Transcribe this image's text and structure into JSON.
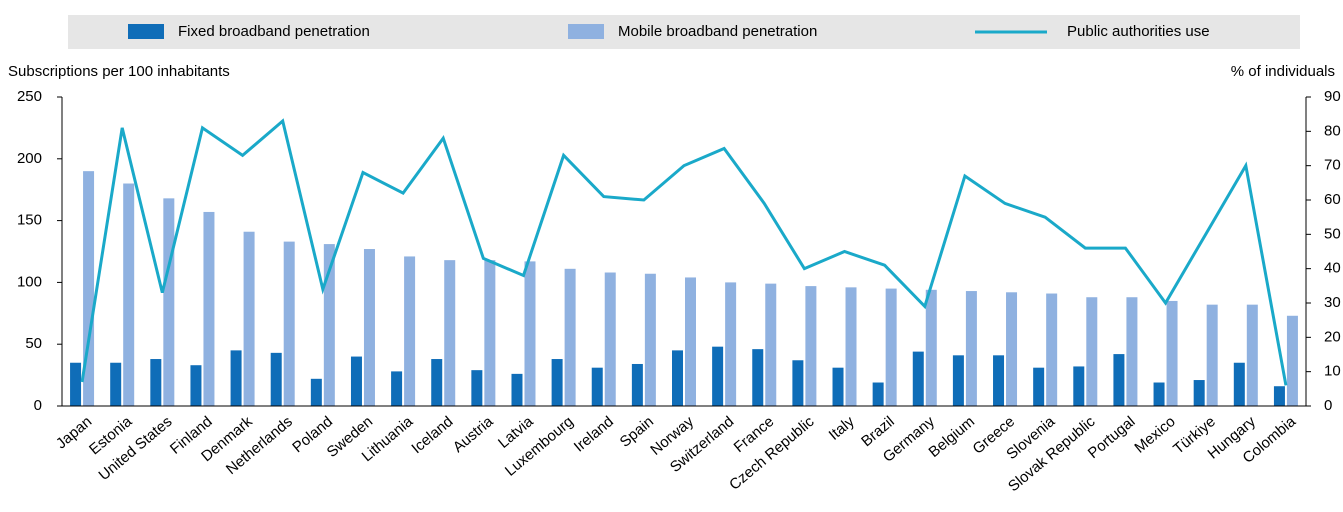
{
  "chart_data": {
    "type": "bar-line",
    "y_label": "Subscriptions per 100 inhabitants",
    "y2_label": "% of individuals",
    "categories": [
      "Japan",
      "Estonia",
      "United States",
      "Finland",
      "Denmark",
      "Netherlands",
      "Poland",
      "Sweden",
      "Lithuania",
      "Iceland",
      "Austria",
      "Latvia",
      "Luxembourg",
      "Ireland",
      "Spain",
      "Norway",
      "Switzerland",
      "France",
      "Czech Republic",
      "Italy",
      "Brazil",
      "Germany",
      "Belgium",
      "Greece",
      "Slovenia",
      "Slovak Republic",
      "Portugal",
      "Mexico",
      "Türkiye",
      "Hungary",
      "Colombia"
    ],
    "series": [
      {
        "name": "Fixed broadband penetration",
        "color": "#0f6db8",
        "type": "bar",
        "values": [
          35,
          35,
          38,
          33,
          45,
          43,
          22,
          40,
          28,
          38,
          29,
          26,
          38,
          31,
          34,
          45,
          48,
          46,
          37,
          31,
          19,
          44,
          41,
          41,
          31,
          32,
          42,
          19,
          21,
          35,
          16
        ]
      },
      {
        "name": "Mobile broadband penetration",
        "color": "#8fb1e0",
        "type": "bar",
        "values": [
          190,
          180,
          168,
          157,
          141,
          133,
          131,
          127,
          121,
          118,
          118,
          117,
          111,
          108,
          107,
          104,
          100,
          99,
          97,
          96,
          95,
          94,
          93,
          92,
          91,
          88,
          88,
          85,
          82,
          82,
          73
        ]
      },
      {
        "name": "Public authorities use",
        "color": "#1aa9c9",
        "type": "line",
        "axis": "y2",
        "values": [
          7,
          81,
          33,
          81,
          73,
          83,
          34,
          68,
          62,
          78,
          43,
          38,
          73,
          61,
          60,
          70,
          75,
          59,
          40,
          45,
          41,
          29,
          67,
          59,
          55,
          46,
          46,
          30,
          50,
          70,
          6
        ]
      }
    ],
    "ylim": [
      0,
      250
    ],
    "yticks": [
      0,
      50,
      100,
      150,
      200,
      250
    ],
    "y2lim": [
      0,
      90
    ],
    "y2ticks": [
      0,
      10,
      20,
      30,
      40,
      50,
      60,
      70,
      80,
      90
    ],
    "legend": "top"
  }
}
